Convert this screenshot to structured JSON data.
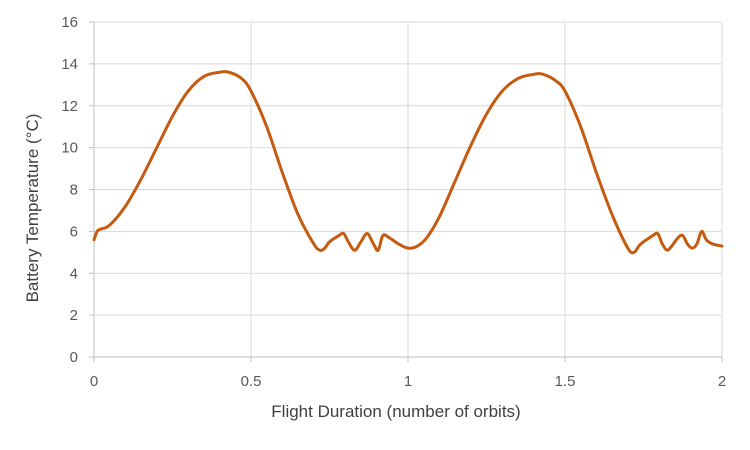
{
  "chart_data": {
    "type": "line",
    "title": "",
    "xlabel": "Flight Duration (number of orbits)",
    "ylabel": "Battery Temperature (°C)",
    "xlim": [
      0,
      2
    ],
    "ylim": [
      0,
      16
    ],
    "x_ticks": [
      0,
      0.5,
      1,
      1.5,
      2
    ],
    "x_tick_labels": [
      "0",
      "0.5",
      "1",
      "1.5",
      "2"
    ],
    "y_ticks": [
      0,
      2,
      4,
      6,
      8,
      10,
      12,
      14,
      16
    ],
    "y_tick_labels": [
      "0",
      "2",
      "4",
      "6",
      "8",
      "10",
      "12",
      "14",
      "16"
    ],
    "grid": true,
    "legend": "none",
    "colors": {
      "series": "#C55A11",
      "grid": "#D9D9D9",
      "axis": "#BFBFBF"
    },
    "series": [
      {
        "x": [
          0,
          0.01,
          0.02,
          0.05,
          0.1,
          0.15,
          0.2,
          0.25,
          0.3,
          0.35,
          0.4,
          0.43,
          0.47,
          0.5,
          0.55,
          0.6,
          0.65,
          0.7,
          0.72,
          0.735,
          0.75,
          0.78,
          0.795,
          0.81,
          0.83,
          0.85,
          0.87,
          0.89,
          0.905,
          0.92,
          0.94,
          0.97,
          1.0,
          1.03,
          1.06,
          1.1,
          1.15,
          1.2,
          1.25,
          1.3,
          1.35,
          1.4,
          1.43,
          1.47,
          1.5,
          1.55,
          1.6,
          1.65,
          1.7,
          1.72,
          1.735,
          1.75,
          1.78,
          1.795,
          1.81,
          1.825,
          1.84,
          1.86,
          1.875,
          1.89,
          1.905,
          1.92,
          1.935,
          1.95,
          1.97,
          2.0
        ],
        "y": [
          5.6,
          6.0,
          6.1,
          6.3,
          7.2,
          8.5,
          10.0,
          11.5,
          12.7,
          13.4,
          13.6,
          13.6,
          13.3,
          12.7,
          11.0,
          8.8,
          6.8,
          5.4,
          5.1,
          5.2,
          5.5,
          5.8,
          5.9,
          5.5,
          5.1,
          5.5,
          5.9,
          5.4,
          5.1,
          5.8,
          5.7,
          5.4,
          5.2,
          5.3,
          5.7,
          6.7,
          8.4,
          10.1,
          11.6,
          12.7,
          13.3,
          13.5,
          13.5,
          13.2,
          12.7,
          11.0,
          8.8,
          6.8,
          5.2,
          5.0,
          5.3,
          5.5,
          5.8,
          5.9,
          5.4,
          5.1,
          5.3,
          5.7,
          5.8,
          5.4,
          5.2,
          5.4,
          6.0,
          5.6,
          5.4,
          5.3
        ]
      }
    ]
  }
}
